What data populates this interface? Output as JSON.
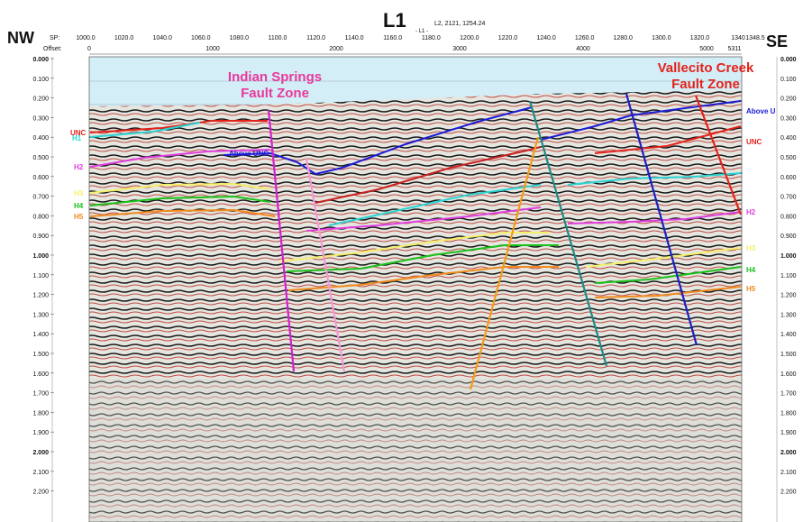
{
  "header": {
    "title": "L1",
    "title_sub": "- L1 -",
    "crossline_label": "L2, 2121, 1254.24",
    "left_direction": "NW",
    "right_direction": "SE",
    "sp_label": "SP:",
    "offset_label": "Offset:",
    "sp_ticks": [
      "1000.0",
      "1020.0",
      "1040.0",
      "1060.0",
      "1080.0",
      "1100.0",
      "1120.0",
      "1140.0",
      "1160.0",
      "1180.0",
      "1200.0",
      "1220.0",
      "1240.0",
      "1260.0",
      "1280.0",
      "1300.0",
      "1320.0",
      "1340"
    ],
    "sp_end": "1348.5",
    "offset_ticks": [
      "0",
      "1000",
      "2000",
      "3000",
      "4000",
      "5000"
    ],
    "offset_end": "5311"
  },
  "time_axis": {
    "labels": [
      "0.000",
      "0.100",
      "0.200",
      "0.300",
      "0.400",
      "0.500",
      "0.600",
      "0.700",
      "0.800",
      "0.900",
      "1.000",
      "1.100",
      "1.200",
      "1.300",
      "1.400",
      "1.500",
      "1.600",
      "1.700",
      "1.800",
      "1.900",
      "2.000",
      "2.100",
      "2.200"
    ],
    "bold_labels": [
      "0.000",
      "1.000",
      "2.000"
    ]
  },
  "fault_zones": {
    "left": {
      "line1": "Indian Springs",
      "line2": "Fault Zone",
      "color": "#e8399b"
    },
    "right": {
      "line1": "Vallecito Creek",
      "line2": "Fault Zone",
      "color": "#e3231b"
    }
  },
  "horizons": {
    "left_labels": [
      {
        "text": "UNC",
        "color": "#e3231b"
      },
      {
        "text": "H1",
        "color": "#2ad4d4"
      },
      {
        "text": "H2",
        "color": "#e03fe0"
      },
      {
        "text": "H3",
        "color": "#f4f06a"
      },
      {
        "text": "H4",
        "color": "#19c119"
      },
      {
        "text": "H5",
        "color": "#f08a1c"
      }
    ],
    "right_labels": [
      {
        "text": "Above U",
        "color": "#1b1bd6"
      },
      {
        "text": "UNC",
        "color": "#e3231b"
      },
      {
        "text": "H2",
        "color": "#e03fe0"
      },
      {
        "text": "H3",
        "color": "#f4f06a"
      },
      {
        "text": "H4",
        "color": "#19c119"
      },
      {
        "text": "H5",
        "color": "#f08a1c"
      }
    ],
    "inline_label": {
      "text": "Above UNC",
      "color": "#1b1bd6"
    }
  },
  "colors": {
    "water": "#d4eef8",
    "seismic_bg": "#e6e6e0",
    "trough": "#1a1a1a",
    "peak": "#c0392b",
    "above_unc": "#1b1bd6",
    "unc": "#e3231b",
    "h1": "#2ad4d4",
    "h2": "#e03fe0",
    "h3": "#f4f06a",
    "h4": "#19c119",
    "h5": "#f08a1c",
    "fault_magenta": "#d31fd3",
    "fault_pink": "#f29ad6",
    "fault_orange": "#f39b1a",
    "fault_teal": "#1f8a82",
    "fault_blue": "#1a20c4",
    "fault_red": "#e3231b"
  }
}
